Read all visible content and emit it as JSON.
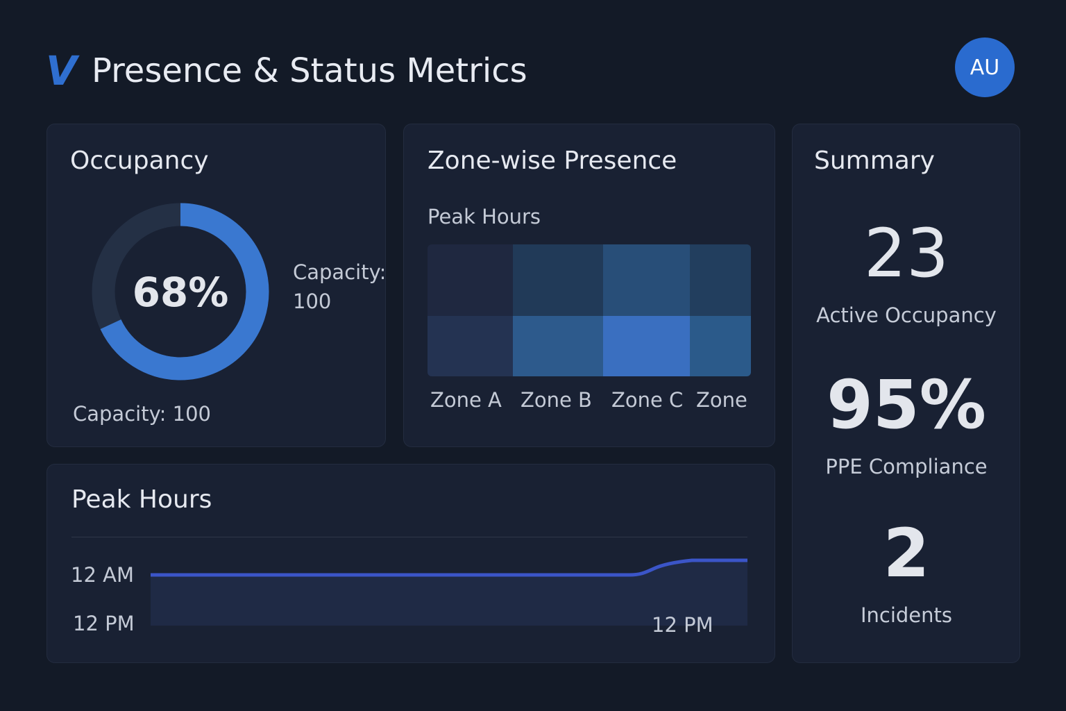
{
  "header": {
    "logo": "V",
    "title": "Presence & Status Metrics",
    "avatar": "AU"
  },
  "occupancy": {
    "title": "Occupancy",
    "percent_label": "68%",
    "percent": 68,
    "side_label": "Capacity:",
    "side_value": "100",
    "footer": "Capacity: 100",
    "colors": {
      "fill": "#3a78d0",
      "track": "#243045"
    }
  },
  "zones": {
    "title": "Zone-wise Presence",
    "subtitle": "Peak Hours",
    "columns": [
      "Zone A",
      "Zone B",
      "Zone C",
      "Zone"
    ],
    "heat_colors": [
      [
        "#1f2840",
        "#213a58",
        "#284e78",
        "#223e5e"
      ],
      [
        "#243352",
        "#2d5a8c",
        "#3a6fc0",
        "#2b5a8a"
      ]
    ]
  },
  "summary": {
    "title": "Summary",
    "items": [
      {
        "value": "23",
        "label": "Active Occupancy"
      },
      {
        "value": "95%",
        "label": "PPE Compliance"
      },
      {
        "value": "2",
        "label": "Incidents"
      }
    ]
  },
  "peak": {
    "title": "Peak Hours",
    "y_labels": [
      "12 AM",
      "12 PM"
    ],
    "x_label": "12 PM",
    "line_color": "#3b55c8"
  }
}
